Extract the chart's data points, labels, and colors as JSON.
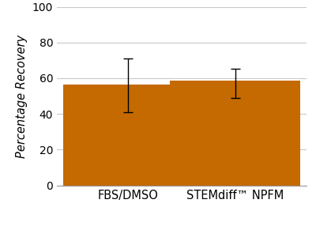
{
  "categories": [
    "FBS/DMSO",
    "STEMdiff™ NPFM"
  ],
  "values": [
    56.5,
    58.5
  ],
  "errors_upper": [
    14.5,
    7.0
  ],
  "errors_lower": [
    15.5,
    9.5
  ],
  "bar_color": "#c46a00",
  "bar_width": 0.55,
  "ylabel": "Percentage Recovery",
  "ylim": [
    0,
    100
  ],
  "yticks": [
    0,
    20,
    40,
    60,
    80,
    100
  ],
  "background_color": "#ffffff",
  "grid_color": "#c8c8c8",
  "xlabel_fontsize": 10.5,
  "ylabel_fontsize": 10.5,
  "tick_fontsize": 10,
  "x_positions": [
    0.3,
    0.75
  ],
  "xlim": [
    0.0,
    1.05
  ]
}
